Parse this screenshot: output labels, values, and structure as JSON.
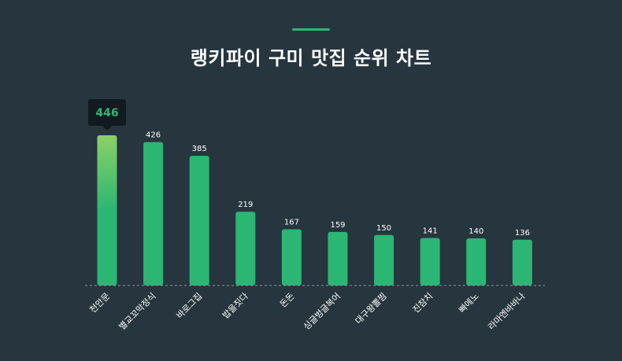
{
  "page": {
    "title": "랭키파이 구미 맛집 순위 차트"
  },
  "colors": {
    "background": "#27353f",
    "accent": "#2bb673",
    "bar": "#2bb673",
    "bar_top_highlight": "#8bd165",
    "tooltip_bg": "#111a20"
  },
  "chart_data": {
    "type": "bar",
    "categories": [
      "천안문",
      "별교꼬막정식",
      "바로그집",
      "밥을짓다",
      "돈돈",
      "싱글벙글복어",
      "대구왕뽈찜",
      "진참치",
      "빠에노",
      "라마엔바바나"
    ],
    "values": [
      446,
      426,
      385,
      219,
      167,
      159,
      150,
      141,
      140,
      136
    ],
    "highlight_index": 0,
    "highlight_value": "446",
    "ylim": [
      0,
      446
    ],
    "grid": false,
    "xlabel": "",
    "ylabel": ""
  }
}
